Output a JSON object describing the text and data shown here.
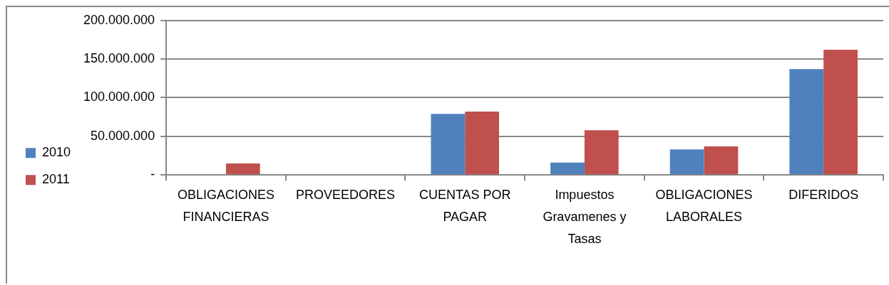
{
  "chart_data": {
    "type": "bar",
    "categories": [
      "OBLIGACIONES FINANCIERAS",
      "PROVEEDORES",
      "CUENTAS POR PAGAR",
      "Impuestos Gravamenes y Tasas",
      "OBLIGACIONES LABORALES",
      "DIFERIDOS"
    ],
    "series": [
      {
        "name": "2010",
        "color": "#4f81bd",
        "values": [
          0,
          0,
          79000000,
          16000000,
          33000000,
          137000000
        ]
      },
      {
        "name": "2011",
        "color": "#c0504d",
        "values": [
          15000000,
          0,
          82000000,
          58000000,
          37000000,
          162000000
        ]
      }
    ],
    "ylim": [
      0,
      200000000
    ],
    "yticks": [
      {
        "value": 0,
        "label": "-"
      },
      {
        "value": 50000000,
        "label": "50.000.000"
      },
      {
        "value": 100000000,
        "label": "100.000.000"
      },
      {
        "value": 150000000,
        "label": "150.000.000"
      },
      {
        "value": 200000000,
        "label": "200.000.000"
      }
    ],
    "grid": "y",
    "legend": "left"
  }
}
